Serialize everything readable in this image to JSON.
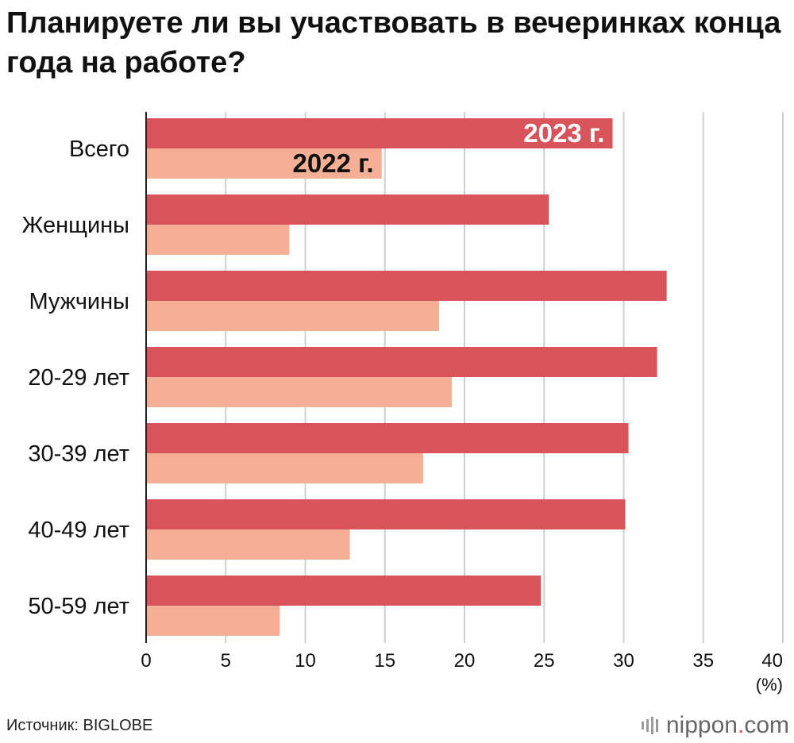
{
  "title": "Планируете ли вы участвовать в вечеринках конца года на работе?",
  "source": "Источник: BIGLOBE",
  "logo": {
    "name": "nippon",
    "dot": ".",
    "tld": "com"
  },
  "colors": {
    "series_2023": "#d9545a",
    "series_2022": "#f5af95",
    "grid": "#cfcfcf",
    "axis": "#222222"
  },
  "chart_data": {
    "type": "bar",
    "orientation": "horizontal",
    "categories": [
      "Всего",
      "Женщины",
      "Мужчины",
      "20-29 лет",
      "30-39 лет",
      "40-49 лет",
      "50-59 лет"
    ],
    "series": [
      {
        "name": "2023 г.",
        "values": [
          29.3,
          25.3,
          32.7,
          32.1,
          30.3,
          30.1,
          24.8
        ]
      },
      {
        "name": "2022 г.",
        "values": [
          14.8,
          9.0,
          18.4,
          19.2,
          17.4,
          12.8,
          8.4
        ]
      }
    ],
    "xlim": [
      0,
      40
    ],
    "xticks": [
      "0",
      "5",
      "10",
      "15",
      "20",
      "25",
      "30",
      "35",
      "40"
    ],
    "x_unit": "(%)",
    "grid": true
  }
}
